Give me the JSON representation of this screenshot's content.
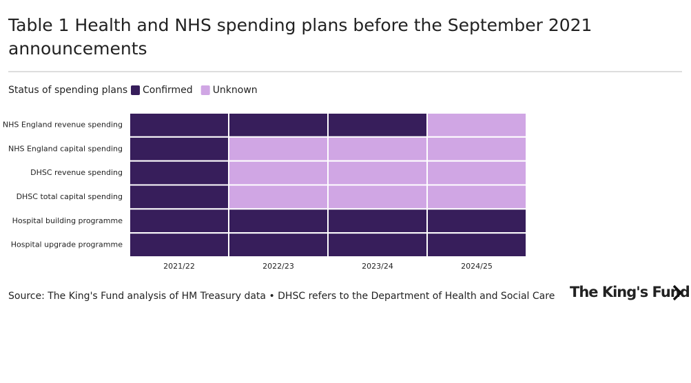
{
  "chart_data": {
    "type": "heatmap",
    "title": "Table 1 Health and NHS spending plans before the September 2021 announcements",
    "legend_title": "Status of spending plans",
    "statuses": [
      {
        "name": "Confirmed",
        "color": "#371e5b"
      },
      {
        "name": "Unknown",
        "color": "#d0a6e4"
      }
    ],
    "columns": [
      "2021/22",
      "2022/23",
      "2023/24",
      "2024/25"
    ],
    "rows": [
      "NHS England revenue spending",
      "NHS England capital spending",
      "DHSC revenue spending",
      "DHSC total capital spending",
      "Hospital building programme",
      "Hospital upgrade programme"
    ],
    "values": [
      [
        "Confirmed",
        "Confirmed",
        "Confirmed",
        "Unknown"
      ],
      [
        "Confirmed",
        "Unknown",
        "Unknown",
        "Unknown"
      ],
      [
        "Confirmed",
        "Unknown",
        "Unknown",
        "Unknown"
      ],
      [
        "Confirmed",
        "Unknown",
        "Unknown",
        "Unknown"
      ],
      [
        "Confirmed",
        "Confirmed",
        "Confirmed",
        "Confirmed"
      ],
      [
        "Confirmed",
        "Confirmed",
        "Confirmed",
        "Confirmed"
      ]
    ],
    "source": "Source: The King's Fund analysis of HM Treasury data • DHSC refers to the Department of Health and Social Care",
    "logo": "The King's Fund"
  }
}
